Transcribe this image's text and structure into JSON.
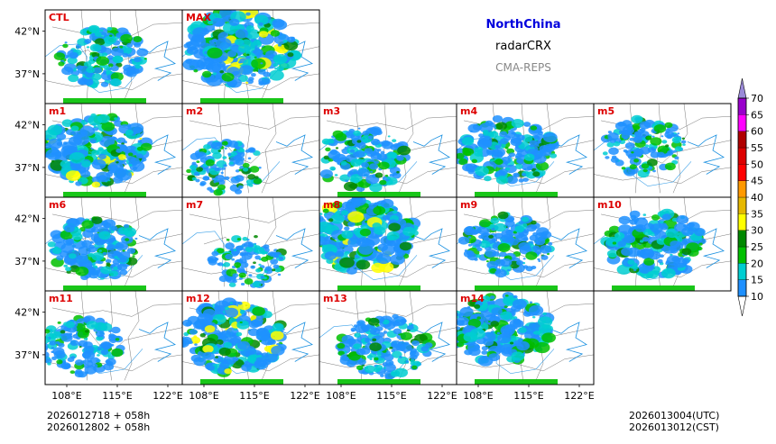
{
  "figure": {
    "region": "NorthChina",
    "variable": "radarCRX",
    "system": "CMA-REPS",
    "init_lines": [
      "2026012718  +  058h",
      "2026012802  +  058h"
    ],
    "valid_lines": [
      "2026013004(UTC)",
      "2026013012(CST)"
    ]
  },
  "chart_data": {
    "type": "heatmap",
    "title": "NorthChina radarCRX CMA-REPS",
    "xlabel": "",
    "ylabel": "",
    "x_ticks": [
      "108°E",
      "115°E",
      "122°E"
    ],
    "y_ticks": [
      "42°N",
      "37°N"
    ],
    "xlim": [
      105,
      124
    ],
    "ylim": [
      33.5,
      44.5
    ],
    "panels": [
      {
        "label": "CTL",
        "intensity": 0.55,
        "center": [
          113,
          39
        ]
      },
      {
        "label": "MAX",
        "intensity": 1.0,
        "center": [
          113,
          40
        ]
      },
      {
        "label": "m1",
        "intensity": 0.85,
        "center": [
          112,
          39
        ]
      },
      {
        "label": "m2",
        "intensity": 0.35,
        "center": [
          111,
          37
        ]
      },
      {
        "label": "m3",
        "intensity": 0.6,
        "center": [
          111,
          38
        ]
      },
      {
        "label": "m4",
        "intensity": 0.7,
        "center": [
          112,
          39
        ]
      },
      {
        "label": "m5",
        "intensity": 0.45,
        "center": [
          112,
          39.5
        ]
      },
      {
        "label": "m6",
        "intensity": 0.6,
        "center": [
          112,
          38.5
        ]
      },
      {
        "label": "m7",
        "intensity": 0.35,
        "center": [
          114,
          37
        ]
      },
      {
        "label": "m8",
        "intensity": 0.9,
        "center": [
          111,
          40
        ]
      },
      {
        "label": "m9",
        "intensity": 0.55,
        "center": [
          112,
          39
        ]
      },
      {
        "label": "m10",
        "intensity": 0.75,
        "center": [
          113.5,
          39
        ]
      },
      {
        "label": "m11",
        "intensity": 0.5,
        "center": [
          110,
          38
        ]
      },
      {
        "label": "m12",
        "intensity": 0.85,
        "center": [
          112,
          39
        ]
      },
      {
        "label": "m13",
        "intensity": 0.6,
        "center": [
          114,
          38
        ]
      },
      {
        "label": "m14",
        "intensity": 0.8,
        "center": [
          111,
          40
        ]
      }
    ],
    "colorbar": {
      "levels": [
        10,
        15,
        20,
        25,
        30,
        35,
        40,
        45,
        50,
        55,
        60,
        65,
        70
      ],
      "colors": [
        "#1e90ff",
        "#00ced1",
        "#00c000",
        "#008800",
        "#ffff00",
        "#e6b800",
        "#ff9900",
        "#ff0000",
        "#dd0000",
        "#b00000",
        "#ff00ff",
        "#9900cc",
        "#9a8ad8"
      ],
      "extend": "both"
    }
  }
}
